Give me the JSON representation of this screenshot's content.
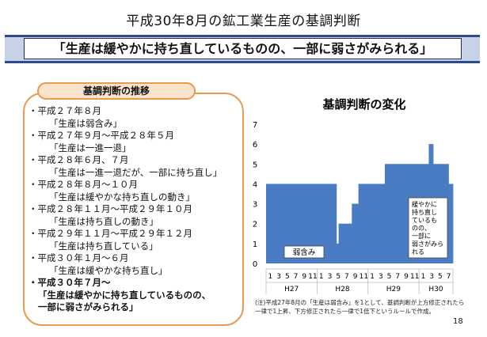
{
  "page_title": "平成30年8月の鉱工業生産の基調判断",
  "headline": "「生産は緩やかに持ち直しているものの、一部に弱さがみられる」",
  "history": {
    "label": "基調判断の推移",
    "items": [
      {
        "period": "・平成２７年８月",
        "judgment": "「生産は弱含み」"
      },
      {
        "period": "・平成２７年９月～平成２８年５月",
        "judgment": "「生産は一進一退」"
      },
      {
        "period": "・平成２８年６月、７月",
        "judgment": "「生産は一進一退だが、一部に持ち直し」"
      },
      {
        "period": "・平成２８年８月～１０月",
        "judgment": "「生産は緩やかな持ち直しの動き」"
      },
      {
        "period": "・平成２８年１１月～平成２９年１０月",
        "judgment": "「生産は持ち直しの動き」"
      },
      {
        "period": "・平成２９年１１月～平成２９年１２月",
        "judgment": "「生産は持ち直している」"
      },
      {
        "period": "・平成３０年１月～６月",
        "judgment": "「生産は緩やかな持ち直し」"
      }
    ],
    "latest": {
      "period": "・平成３０年７月～",
      "judgment_line1": "「生産は緩やかに持ち直しているものの、",
      "judgment_line2": "一部に弱さがみられる」"
    }
  },
  "chart_data": {
    "type": "area",
    "title": "基調判断の変化",
    "ylim": [
      0,
      7
    ],
    "y_ticks": [
      0,
      1,
      2,
      3,
      4,
      5,
      6,
      7
    ],
    "months": [
      "1",
      "3",
      "5",
      "7",
      "9",
      "11",
      "1",
      "3",
      "5",
      "7",
      "9",
      "11",
      "1",
      "3",
      "5",
      "7",
      "9",
      "11",
      "1",
      "3",
      "5",
      "7"
    ],
    "year_labels": [
      "H27",
      "H28",
      "H29",
      "H30"
    ],
    "values": [
      4,
      4,
      4,
      4,
      4,
      4,
      4,
      4,
      4,
      4,
      4,
      4,
      4,
      4,
      4,
      4,
      4,
      4,
      4,
      4,
      4,
      4,
      4,
      4,
      4,
      4,
      4,
      4,
      4,
      4,
      4,
      4,
      1,
      2,
      2,
      2,
      2,
      2,
      2,
      3,
      3,
      3,
      4,
      4,
      4,
      4,
      4,
      4,
      4,
      4,
      4,
      4,
      4,
      4,
      5,
      5,
      5,
      5,
      5,
      5,
      5,
      5,
      5,
      5,
      5,
      5,
      5,
      5,
      5,
      5,
      5,
      5,
      5,
      5,
      6,
      6,
      5,
      5,
      5,
      5,
      5,
      5,
      5,
      4,
      4
    ],
    "color": "#4a7cc4",
    "annotations": [
      {
        "text": "弱含み"
      },
      {
        "lines": [
          "緩やかに",
          "持ち直し",
          "ているも",
          "のの、",
          "一部に",
          "弱さがみら",
          "れる"
        ]
      }
    ],
    "grid": false
  },
  "note": {
    "line1": "(注)平成27年8月の「生産は弱含み」を1として、基調判断が上方修正されたら",
    "line2": "一律で1上昇、下方修正されたら一律で1低下というルールで作成。"
  },
  "page_number": "18"
}
